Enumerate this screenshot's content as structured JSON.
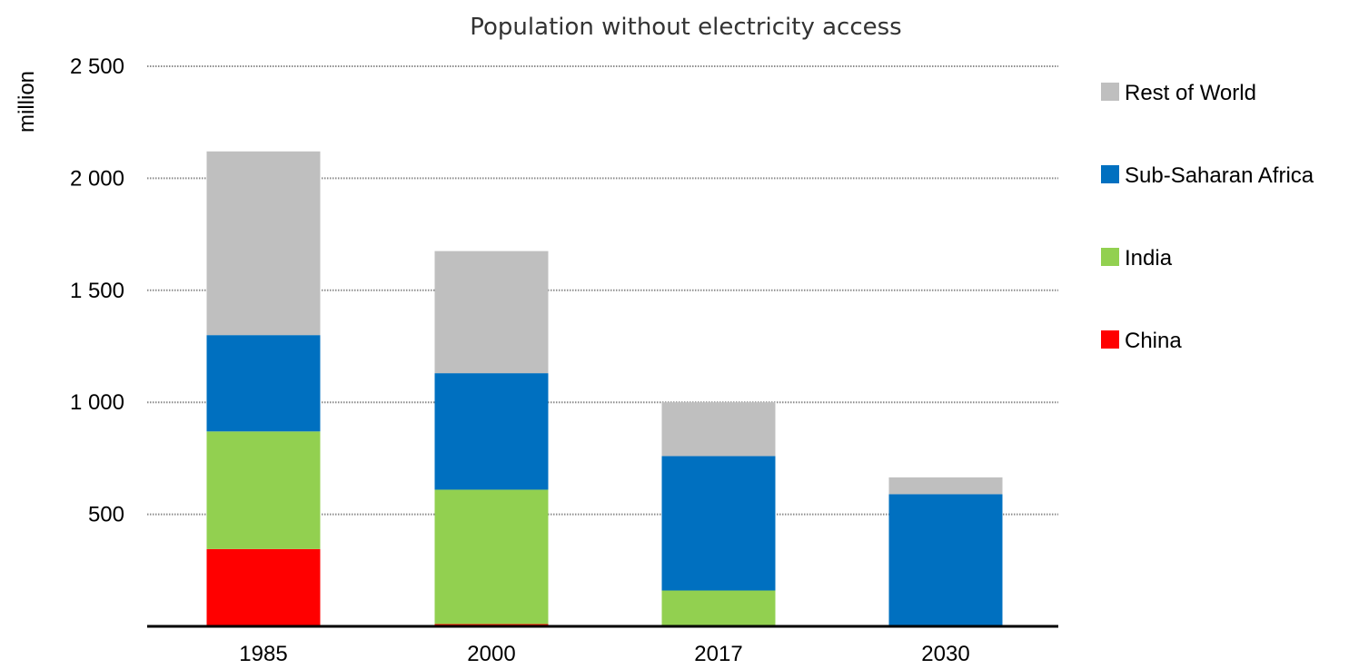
{
  "chart_data": {
    "type": "bar",
    "stacked": true,
    "title": "Population without electricity access",
    "ylabel": "million",
    "xlabel": "",
    "categories": [
      "1985",
      "2000",
      "2017",
      "2030"
    ],
    "ylim": [
      0,
      2500
    ],
    "yticks": [
      500,
      1000,
      1500,
      2000,
      2500
    ],
    "ytick_labels": [
      "500",
      "1 000",
      "1 500",
      "2 000",
      "2 500"
    ],
    "grid": "horizontal-dotted",
    "legend_position": "right",
    "series": [
      {
        "name": "China",
        "color": "#ff0000",
        "values": [
          345,
          10,
          0,
          0
        ]
      },
      {
        "name": "India",
        "color": "#92d050",
        "values": [
          525,
          600,
          160,
          0
        ]
      },
      {
        "name": "Sub-Saharan Africa",
        "color": "#0070c0",
        "values": [
          430,
          520,
          600,
          590
        ]
      },
      {
        "name": "Rest of World",
        "color": "#bfbfbf",
        "values": [
          820,
          545,
          240,
          75
        ]
      }
    ]
  }
}
